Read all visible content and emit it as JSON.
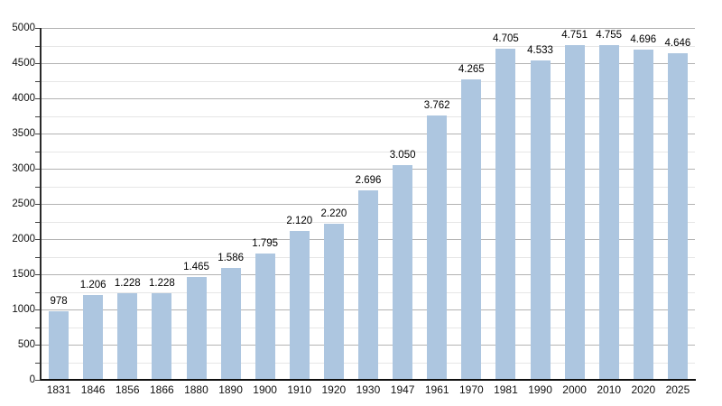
{
  "chart_data": {
    "type": "bar",
    "title": "",
    "xlabel": "",
    "ylabel": "",
    "categories": [
      "1831",
      "1846",
      "1856",
      "1866",
      "1880",
      "1890",
      "1900",
      "1910",
      "1920",
      "1930",
      "1947",
      "1961",
      "1970",
      "1981",
      "1990",
      "2000",
      "2010",
      "2020",
      "2025"
    ],
    "values": [
      978,
      1206,
      1228,
      1228,
      1465,
      1586,
      1795,
      2120,
      2220,
      2696,
      3050,
      3762,
      4265,
      4705,
      4533,
      4751,
      4755,
      4696,
      4646
    ],
    "value_labels": [
      "978",
      "1.206",
      "1.228",
      "1.228",
      "1.465",
      "1.586",
      "1.795",
      "2.120",
      "2.220",
      "2.696",
      "3.050",
      "3.762",
      "4.265",
      "4.705",
      "4.533",
      "4.751",
      "4.755",
      "4.696",
      "4.646"
    ],
    "ylim": [
      0,
      5000
    ],
    "yticks": [
      0,
      500,
      1000,
      1500,
      2000,
      2500,
      3000,
      3500,
      4000,
      4500,
      5000
    ],
    "ytick_labels": [
      "0",
      "500",
      "1000",
      "1500",
      "2000",
      "2500",
      "3000",
      "3500",
      "4000",
      "4500",
      "5000"
    ],
    "minor_tick_step": 250,
    "grid": "on",
    "legend": "none",
    "colors": {
      "bar_fill": "#adc6e0",
      "major_grid": "#b3b3b3",
      "minor_grid": "#e6e6e6",
      "axis": "#1a1a1a",
      "text": "#000000",
      "background": "#ffffff"
    }
  }
}
